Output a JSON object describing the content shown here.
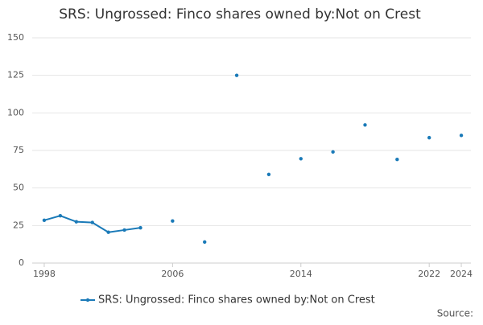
{
  "chart_data": {
    "type": "line",
    "title": "SRS: Ungrossed: Finco shares owned by:Not on Crest",
    "x": [
      1998,
      1999,
      2000,
      2001,
      2002,
      2003,
      2004,
      2005,
      2006,
      2007,
      2008,
      2009,
      2010,
      2011,
      2012,
      2013,
      2014,
      2015,
      2016,
      2017,
      2018,
      2019,
      2020,
      2021,
      2022,
      2023,
      2024
    ],
    "series": [
      {
        "name": "SRS: Ungrossed: Finco shares owned by:Not on Crest",
        "color": "#1a7ab8",
        "values": [
          28.5,
          31.5,
          27.5,
          27,
          20.5,
          22,
          23.5,
          null,
          28,
          null,
          14,
          null,
          125,
          null,
          59,
          null,
          69.5,
          null,
          74,
          null,
          92,
          null,
          69,
          null,
          83.5,
          null,
          85
        ]
      }
    ],
    "xlim": [
      1997.25,
      2024.6
    ],
    "xticks": [
      1998,
      2006,
      2014,
      2022,
      2024
    ],
    "ylim": [
      0,
      150
    ],
    "yticks": [
      0,
      25,
      50,
      75,
      100,
      125,
      150
    ],
    "grid": true,
    "source": "Source:"
  }
}
